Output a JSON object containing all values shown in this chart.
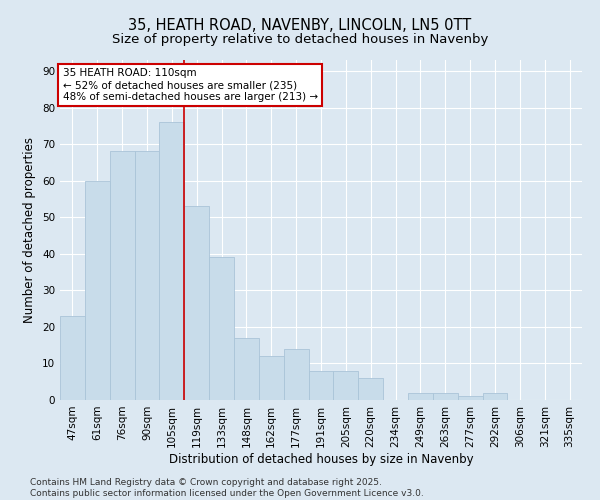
{
  "title": "35, HEATH ROAD, NAVENBY, LINCOLN, LN5 0TT",
  "subtitle": "Size of property relative to detached houses in Navenby",
  "xlabel": "Distribution of detached houses by size in Navenby",
  "ylabel": "Number of detached properties",
  "categories": [
    "47sqm",
    "61sqm",
    "76sqm",
    "90sqm",
    "105sqm",
    "119sqm",
    "133sqm",
    "148sqm",
    "162sqm",
    "177sqm",
    "191sqm",
    "205sqm",
    "220sqm",
    "234sqm",
    "249sqm",
    "263sqm",
    "277sqm",
    "292sqm",
    "306sqm",
    "321sqm",
    "335sqm"
  ],
  "values": [
    23,
    60,
    68,
    68,
    76,
    53,
    39,
    17,
    12,
    14,
    8,
    8,
    6,
    0,
    2,
    2,
    1,
    2,
    0,
    0,
    0
  ],
  "bar_color": "#c8dcea",
  "bar_edge_color": "#aac4d8",
  "highlight_line_color": "#cc0000",
  "annotation_text": "35 HEATH ROAD: 110sqm\n← 52% of detached houses are smaller (235)\n48% of semi-detached houses are larger (213) →",
  "annotation_box_color": "#ffffff",
  "annotation_box_edge": "#cc0000",
  "ylim": [
    0,
    93
  ],
  "yticks": [
    0,
    10,
    20,
    30,
    40,
    50,
    60,
    70,
    80,
    90
  ],
  "background_color": "#dce8f2",
  "grid_color": "#ffffff",
  "footer_text": "Contains HM Land Registry data © Crown copyright and database right 2025.\nContains public sector information licensed under the Open Government Licence v3.0.",
  "title_fontsize": 10.5,
  "subtitle_fontsize": 9.5,
  "axis_label_fontsize": 8.5,
  "tick_fontsize": 7.5,
  "annotation_fontsize": 7.5,
  "footer_fontsize": 6.5
}
